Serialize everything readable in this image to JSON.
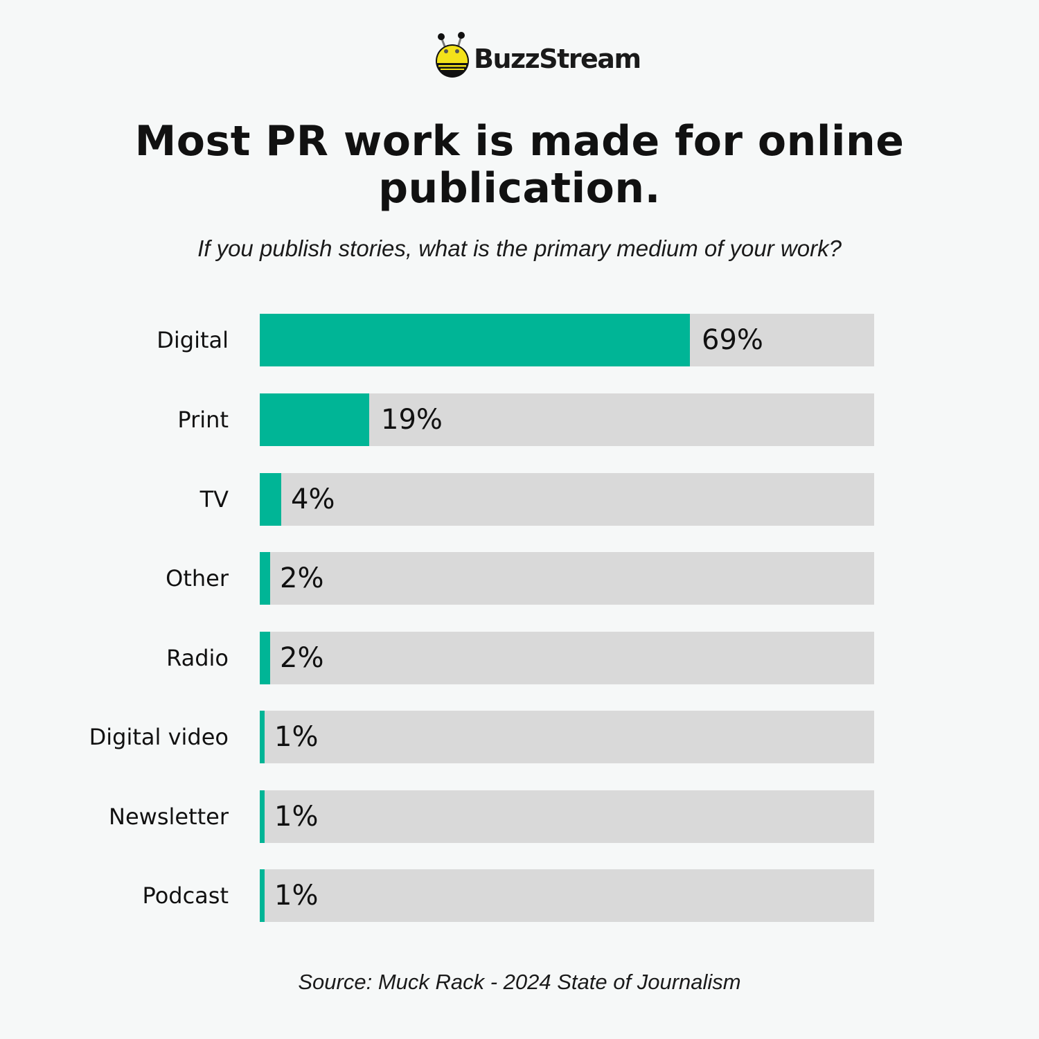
{
  "brand": {
    "name": "BuzzStream",
    "icon": "bee-icon"
  },
  "title": "Most PR work is made for online publication.",
  "subtitle": "If you publish stories, what is the primary medium of your work?",
  "source": "Source: Muck Rack - 2024 State of Journalism",
  "colors": {
    "bar_fill": "#00b596",
    "bar_track": "#d9d9d9",
    "background": "#f6f8f8"
  },
  "chart_data": {
    "type": "bar",
    "orientation": "horizontal",
    "title": "Most PR work is made for online publication.",
    "subtitle": "If you publish stories, what is the primary medium of your work?",
    "categories": [
      "Digital",
      "Print",
      "TV",
      "Other",
      "Radio",
      "Digital video",
      "Newsletter",
      "Podcast"
    ],
    "values": [
      69,
      19,
      4,
      2,
      2,
      1,
      1,
      1
    ],
    "value_labels": [
      "69%",
      "19%",
      "4%",
      "2%",
      "2%",
      "1%",
      "1%",
      "1%"
    ],
    "unit": "%",
    "xlim": [
      0,
      100
    ],
    "grid": false,
    "legend": "none",
    "source": "Source: Muck Rack - 2024 State of Journalism"
  }
}
